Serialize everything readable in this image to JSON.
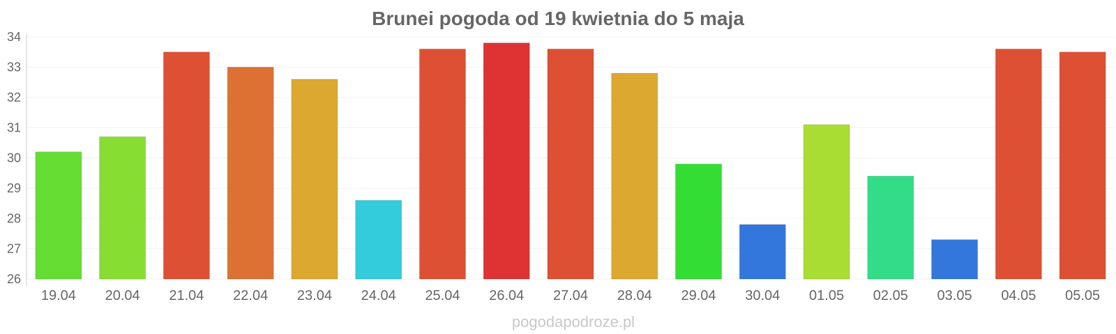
{
  "chart_data": {
    "type": "bar",
    "title": "Brunei pogoda od 19 kwietnia do 5 maja",
    "categories": [
      "19.04",
      "20.04",
      "21.04",
      "22.04",
      "23.04",
      "24.04",
      "25.04",
      "26.04",
      "27.04",
      "28.04",
      "29.04",
      "30.04",
      "01.05",
      "02.05",
      "03.05",
      "04.05",
      "05.05"
    ],
    "values": [
      30.2,
      30.7,
      33.5,
      33.0,
      32.6,
      28.6,
      33.6,
      33.8,
      33.6,
      32.8,
      29.8,
      27.8,
      31.1,
      29.4,
      27.3,
      33.6,
      33.5
    ],
    "colors": [
      "#66dd33",
      "#88dd33",
      "#dd5033",
      "#dd7033",
      "#dca830",
      "#33ccdd",
      "#dd5033",
      "#dd3333",
      "#dd5033",
      "#dca830",
      "#33dd33",
      "#3377dd",
      "#aadd33",
      "#33dd88",
      "#3377dd",
      "#dd5033",
      "#dd5033"
    ],
    "ylim": [
      26,
      34
    ],
    "yticks": [
      26,
      27,
      28,
      29,
      30,
      31,
      32,
      33,
      34
    ],
    "xlabel": "",
    "ylabel": "",
    "grid": true,
    "legend": "none"
  },
  "watermark": "pogodapodroze.pl"
}
